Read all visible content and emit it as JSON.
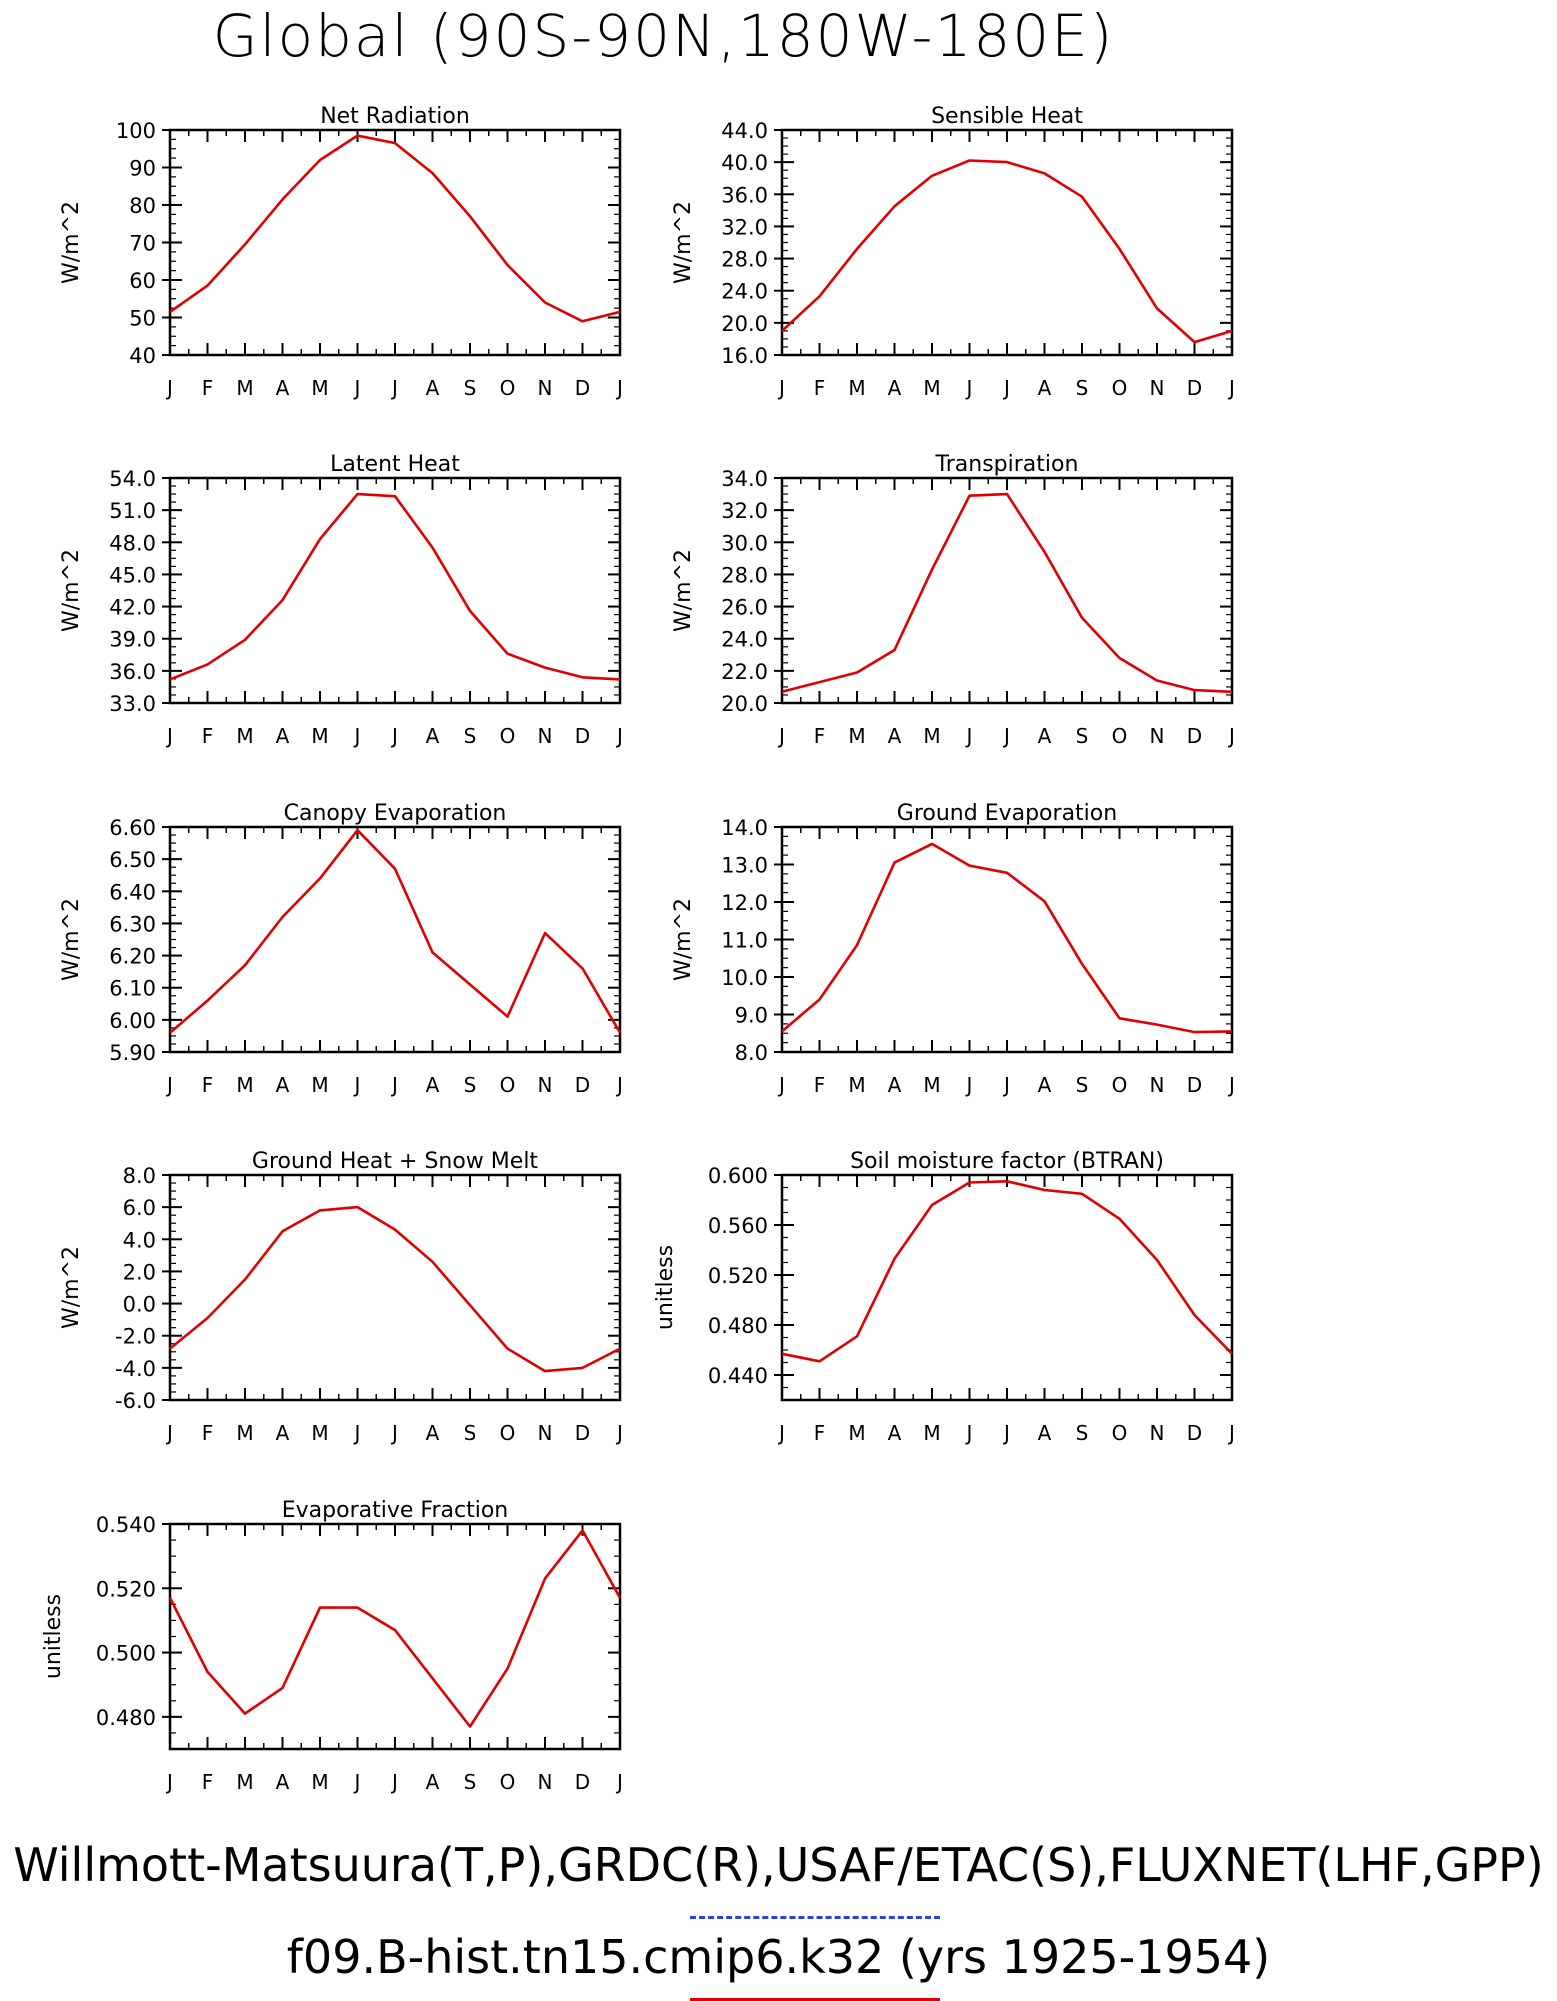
{
  "page": {
    "title": "Global (90S-90N,180W-180E)"
  },
  "legend": {
    "observations": "Willmott-Matsuura(T,P),GRDC(R),USAF/ETAC(S),FLUXNET(LHF,GPP)",
    "model": "f09.B-hist.tn15.cmip6.k32 (yrs 1925-1954)",
    "observations_line_color": "#2a3ee6",
    "model_line_color": "#e00000"
  },
  "chart_data": [
    {
      "type": "line",
      "title": "Net Radiation",
      "ylabel": "W/m^2",
      "categories": [
        "J",
        "F",
        "M",
        "A",
        "M",
        "J",
        "J",
        "A",
        "S",
        "O",
        "N",
        "D",
        "J"
      ],
      "yticks": [
        "40",
        "50",
        "60",
        "70",
        "80",
        "90",
        "100"
      ],
      "ylim": [
        40,
        100
      ],
      "series": [
        {
          "values": [
            51.5,
            58.5,
            69.5,
            81.5,
            92.0,
            98.5,
            96.5,
            88.5,
            77.0,
            64.0,
            54.0,
            49.0,
            51.5
          ],
          "color": "#e00000"
        }
      ]
    },
    {
      "type": "line",
      "title": "Sensible Heat",
      "ylabel": "W/m^2",
      "categories": [
        "J",
        "F",
        "M",
        "A",
        "M",
        "J",
        "J",
        "A",
        "S",
        "O",
        "N",
        "D",
        "J"
      ],
      "yticks": [
        "16.0",
        "20.0",
        "24.0",
        "28.0",
        "32.0",
        "36.0",
        "40.0",
        "44.0"
      ],
      "ylim": [
        16,
        44
      ],
      "series": [
        {
          "values": [
            19.0,
            23.3,
            29.2,
            34.5,
            38.3,
            40.2,
            40.0,
            38.6,
            35.7,
            29.2,
            21.8,
            17.6,
            19.0
          ],
          "color": "#e00000"
        }
      ]
    },
    {
      "type": "line",
      "title": "Latent Heat",
      "ylabel": "W/m^2",
      "categories": [
        "J",
        "F",
        "M",
        "A",
        "M",
        "J",
        "J",
        "A",
        "S",
        "O",
        "N",
        "D",
        "J"
      ],
      "yticks": [
        "33.0",
        "36.0",
        "39.0",
        "42.0",
        "45.0",
        "48.0",
        "51.0",
        "54.0"
      ],
      "ylim": [
        33,
        54
      ],
      "series": [
        {
          "values": [
            35.2,
            36.6,
            38.9,
            42.6,
            48.3,
            52.5,
            52.3,
            47.5,
            41.6,
            37.6,
            36.3,
            35.4,
            35.2
          ],
          "color": "#e00000"
        }
      ]
    },
    {
      "type": "line",
      "title": "Transpiration",
      "ylabel": "W/m^2",
      "categories": [
        "J",
        "F",
        "M",
        "A",
        "M",
        "J",
        "J",
        "A",
        "S",
        "O",
        "N",
        "D",
        "J"
      ],
      "yticks": [
        "20.0",
        "22.0",
        "24.0",
        "26.0",
        "28.0",
        "30.0",
        "32.0",
        "34.0"
      ],
      "ylim": [
        20,
        34
      ],
      "series": [
        {
          "values": [
            20.7,
            21.3,
            21.9,
            23.3,
            28.3,
            32.9,
            33.0,
            29.4,
            25.3,
            22.8,
            21.4,
            20.8,
            20.7
          ],
          "color": "#e00000"
        }
      ]
    },
    {
      "type": "line",
      "title": "Canopy Evaporation",
      "ylabel": "W/m^2",
      "categories": [
        "J",
        "F",
        "M",
        "A",
        "M",
        "J",
        "J",
        "A",
        "S",
        "O",
        "N",
        "D",
        "J"
      ],
      "yticks": [
        "5.90",
        "6.00",
        "6.10",
        "6.20",
        "6.30",
        "6.40",
        "6.50",
        "6.60"
      ],
      "ylim": [
        5.9,
        6.6
      ],
      "series": [
        {
          "values": [
            5.96,
            6.06,
            6.17,
            6.32,
            6.44,
            6.59,
            6.47,
            6.21,
            6.11,
            6.01,
            6.27,
            6.16,
            5.96
          ],
          "color": "#e00000"
        }
      ]
    },
    {
      "type": "line",
      "title": "Ground Evaporation",
      "ylabel": "W/m^2",
      "categories": [
        "J",
        "F",
        "M",
        "A",
        "M",
        "J",
        "J",
        "A",
        "S",
        "O",
        "N",
        "D",
        "J"
      ],
      "yticks": [
        "8.0",
        "9.0",
        "10.0",
        "11.0",
        "12.0",
        "13.0",
        "14.0"
      ],
      "ylim": [
        8,
        14
      ],
      "series": [
        {
          "values": [
            8.55,
            9.4,
            10.85,
            13.05,
            13.55,
            12.97,
            12.78,
            12.02,
            10.35,
            8.9,
            8.73,
            8.53,
            8.55
          ],
          "color": "#e00000"
        }
      ]
    },
    {
      "type": "line",
      "title": "Ground Heat + Snow Melt",
      "ylabel": "W/m^2",
      "categories": [
        "J",
        "F",
        "M",
        "A",
        "M",
        "J",
        "J",
        "A",
        "S",
        "O",
        "N",
        "D",
        "J"
      ],
      "yticks": [
        "-6.0",
        "-4.0",
        "-2.0",
        "0.0",
        "2.0",
        "4.0",
        "6.0",
        "8.0"
      ],
      "ylim": [
        -6,
        8
      ],
      "series": [
        {
          "values": [
            -2.8,
            -0.9,
            1.5,
            4.5,
            5.8,
            6.0,
            4.6,
            2.6,
            -0.1,
            -2.8,
            -4.2,
            -4.0,
            -2.8
          ],
          "color": "#e00000"
        }
      ]
    },
    {
      "type": "line",
      "title": "Soil moisture factor (BTRAN)",
      "ylabel": "unitless",
      "categories": [
        "J",
        "F",
        "M",
        "A",
        "M",
        "J",
        "J",
        "A",
        "S",
        "O",
        "N",
        "D",
        "J"
      ],
      "yticks": [
        "0.440",
        "0.480",
        "0.520",
        "0.560",
        "0.600"
      ],
      "ylim": [
        0.42,
        0.6
      ],
      "series": [
        {
          "values": [
            0.457,
            0.451,
            0.471,
            0.533,
            0.576,
            0.594,
            0.595,
            0.588,
            0.585,
            0.565,
            0.532,
            0.488,
            0.457
          ],
          "color": "#e00000"
        }
      ]
    },
    {
      "type": "line",
      "title": "Evaporative Fraction",
      "ylabel": "unitless",
      "categories": [
        "J",
        "F",
        "M",
        "A",
        "M",
        "J",
        "J",
        "A",
        "S",
        "O",
        "N",
        "D",
        "J"
      ],
      "yticks": [
        "0.480",
        "0.500",
        "0.520",
        "0.540"
      ],
      "ylim": [
        0.47,
        0.54
      ],
      "series": [
        {
          "values": [
            0.517,
            0.494,
            0.481,
            0.489,
            0.514,
            0.514,
            0.507,
            0.492,
            0.477,
            0.495,
            0.523,
            0.538,
            0.517
          ],
          "color": "#e00000"
        }
      ]
    }
  ]
}
